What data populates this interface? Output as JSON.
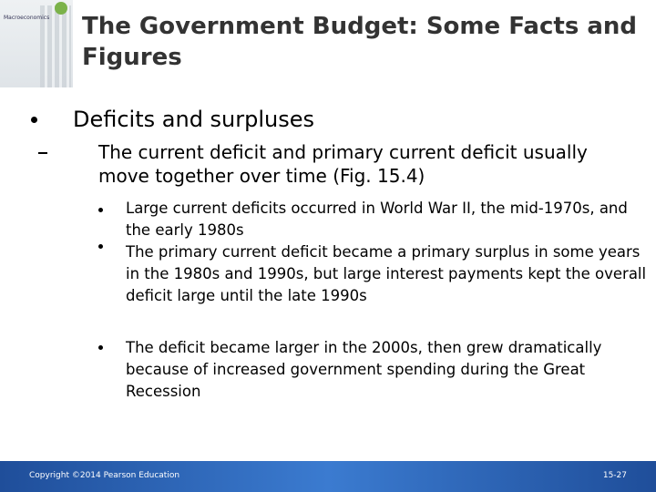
{
  "cover": {
    "title": "Macroeconomics"
  },
  "header": {
    "title": "The Government Budget: Some Facts and Figures"
  },
  "bullets": [
    {
      "text": "Deficits and surpluses",
      "children": [
        {
          "text": "The current deficit and primary current deficit usually move together over time (Fig. 15.4)",
          "children": [
            {
              "text": "Large current deficits occurred in World War II, the mid-1970s, and the early 1980s"
            },
            {
              "text": "The primary current deficit became a primary surplus in some years in the 1980s and 1990s, but large interest payments kept the overall deficit large until the late 1990s"
            },
            {
              "text": "The deficit became larger in the 2000s, then grew dramatically because of increased government spending during the Great Recession"
            }
          ]
        }
      ]
    }
  ],
  "footer": {
    "copyright": "Copyright ©2014 Pearson Education",
    "page": "15-27"
  }
}
